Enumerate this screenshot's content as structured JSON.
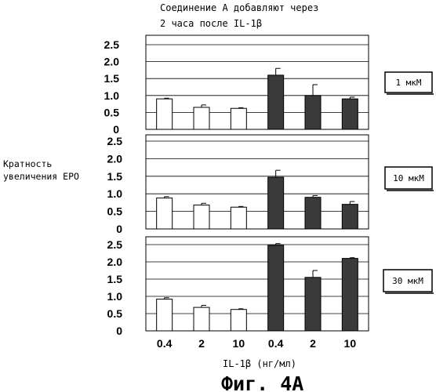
{
  "title_lines": [
    "Соединение А добавляют через",
    "2 часа после IL-1β"
  ],
  "ylabel_lines": [
    "Кратность",
    "увеличения EPO"
  ],
  "xlabel": "IL-1β (нг/мл)",
  "figure_caption": "Фиг. 4А",
  "colors": {
    "open_bar": "#ffffff",
    "filled_bar": "#3a3a3a",
    "axis": "#000000",
    "grid": "#000000"
  },
  "chart_data": [
    {
      "type": "bar",
      "panel_label": "1 мкМ",
      "categories": [
        "0.4",
        "2",
        "10",
        "0.4",
        "2",
        "10"
      ],
      "values": [
        0.9,
        0.65,
        0.62,
        1.6,
        1.0,
        0.9
      ],
      "errors": [
        0.02,
        0.07,
        0.02,
        0.2,
        0.32,
        0.05
      ],
      "fill": [
        "open",
        "open",
        "open",
        "filled",
        "filled",
        "filled"
      ],
      "ylim": [
        0,
        2.5
      ],
      "yticks": [
        "2.5",
        "2.0",
        "1.5",
        "1.0",
        "0.5",
        "0"
      ],
      "grid": true
    },
    {
      "type": "bar",
      "panel_label": "10 мкМ",
      "categories": [
        "0.4",
        "2",
        "10",
        "0.4",
        "2",
        "10"
      ],
      "values": [
        0.88,
        0.68,
        0.62,
        1.47,
        0.9,
        0.7
      ],
      "errors": [
        0.04,
        0.05,
        0.02,
        0.2,
        0.05,
        0.08
      ],
      "fill": [
        "open",
        "open",
        "open",
        "filled",
        "filled",
        "filled"
      ],
      "ylim": [
        0,
        2.5
      ],
      "yticks": [
        "2.5",
        "2.0",
        "1.5",
        "1.0",
        "0.5",
        "0"
      ],
      "grid": true
    },
    {
      "type": "bar",
      "panel_label": "30 мкМ",
      "categories": [
        "0.4",
        "2",
        "10",
        "0.4",
        "2",
        "10"
      ],
      "values": [
        0.92,
        0.68,
        0.62,
        2.48,
        1.55,
        2.1
      ],
      "errors": [
        0.04,
        0.06,
        0.02,
        0.05,
        0.2,
        0.02
      ],
      "fill": [
        "open",
        "open",
        "open",
        "filled",
        "filled",
        "filled"
      ],
      "ylim": [
        0,
        2.5
      ],
      "yticks": [
        "2.5",
        "2.0",
        "1.5",
        "1.0",
        "0.5",
        "0"
      ],
      "grid": true
    }
  ]
}
